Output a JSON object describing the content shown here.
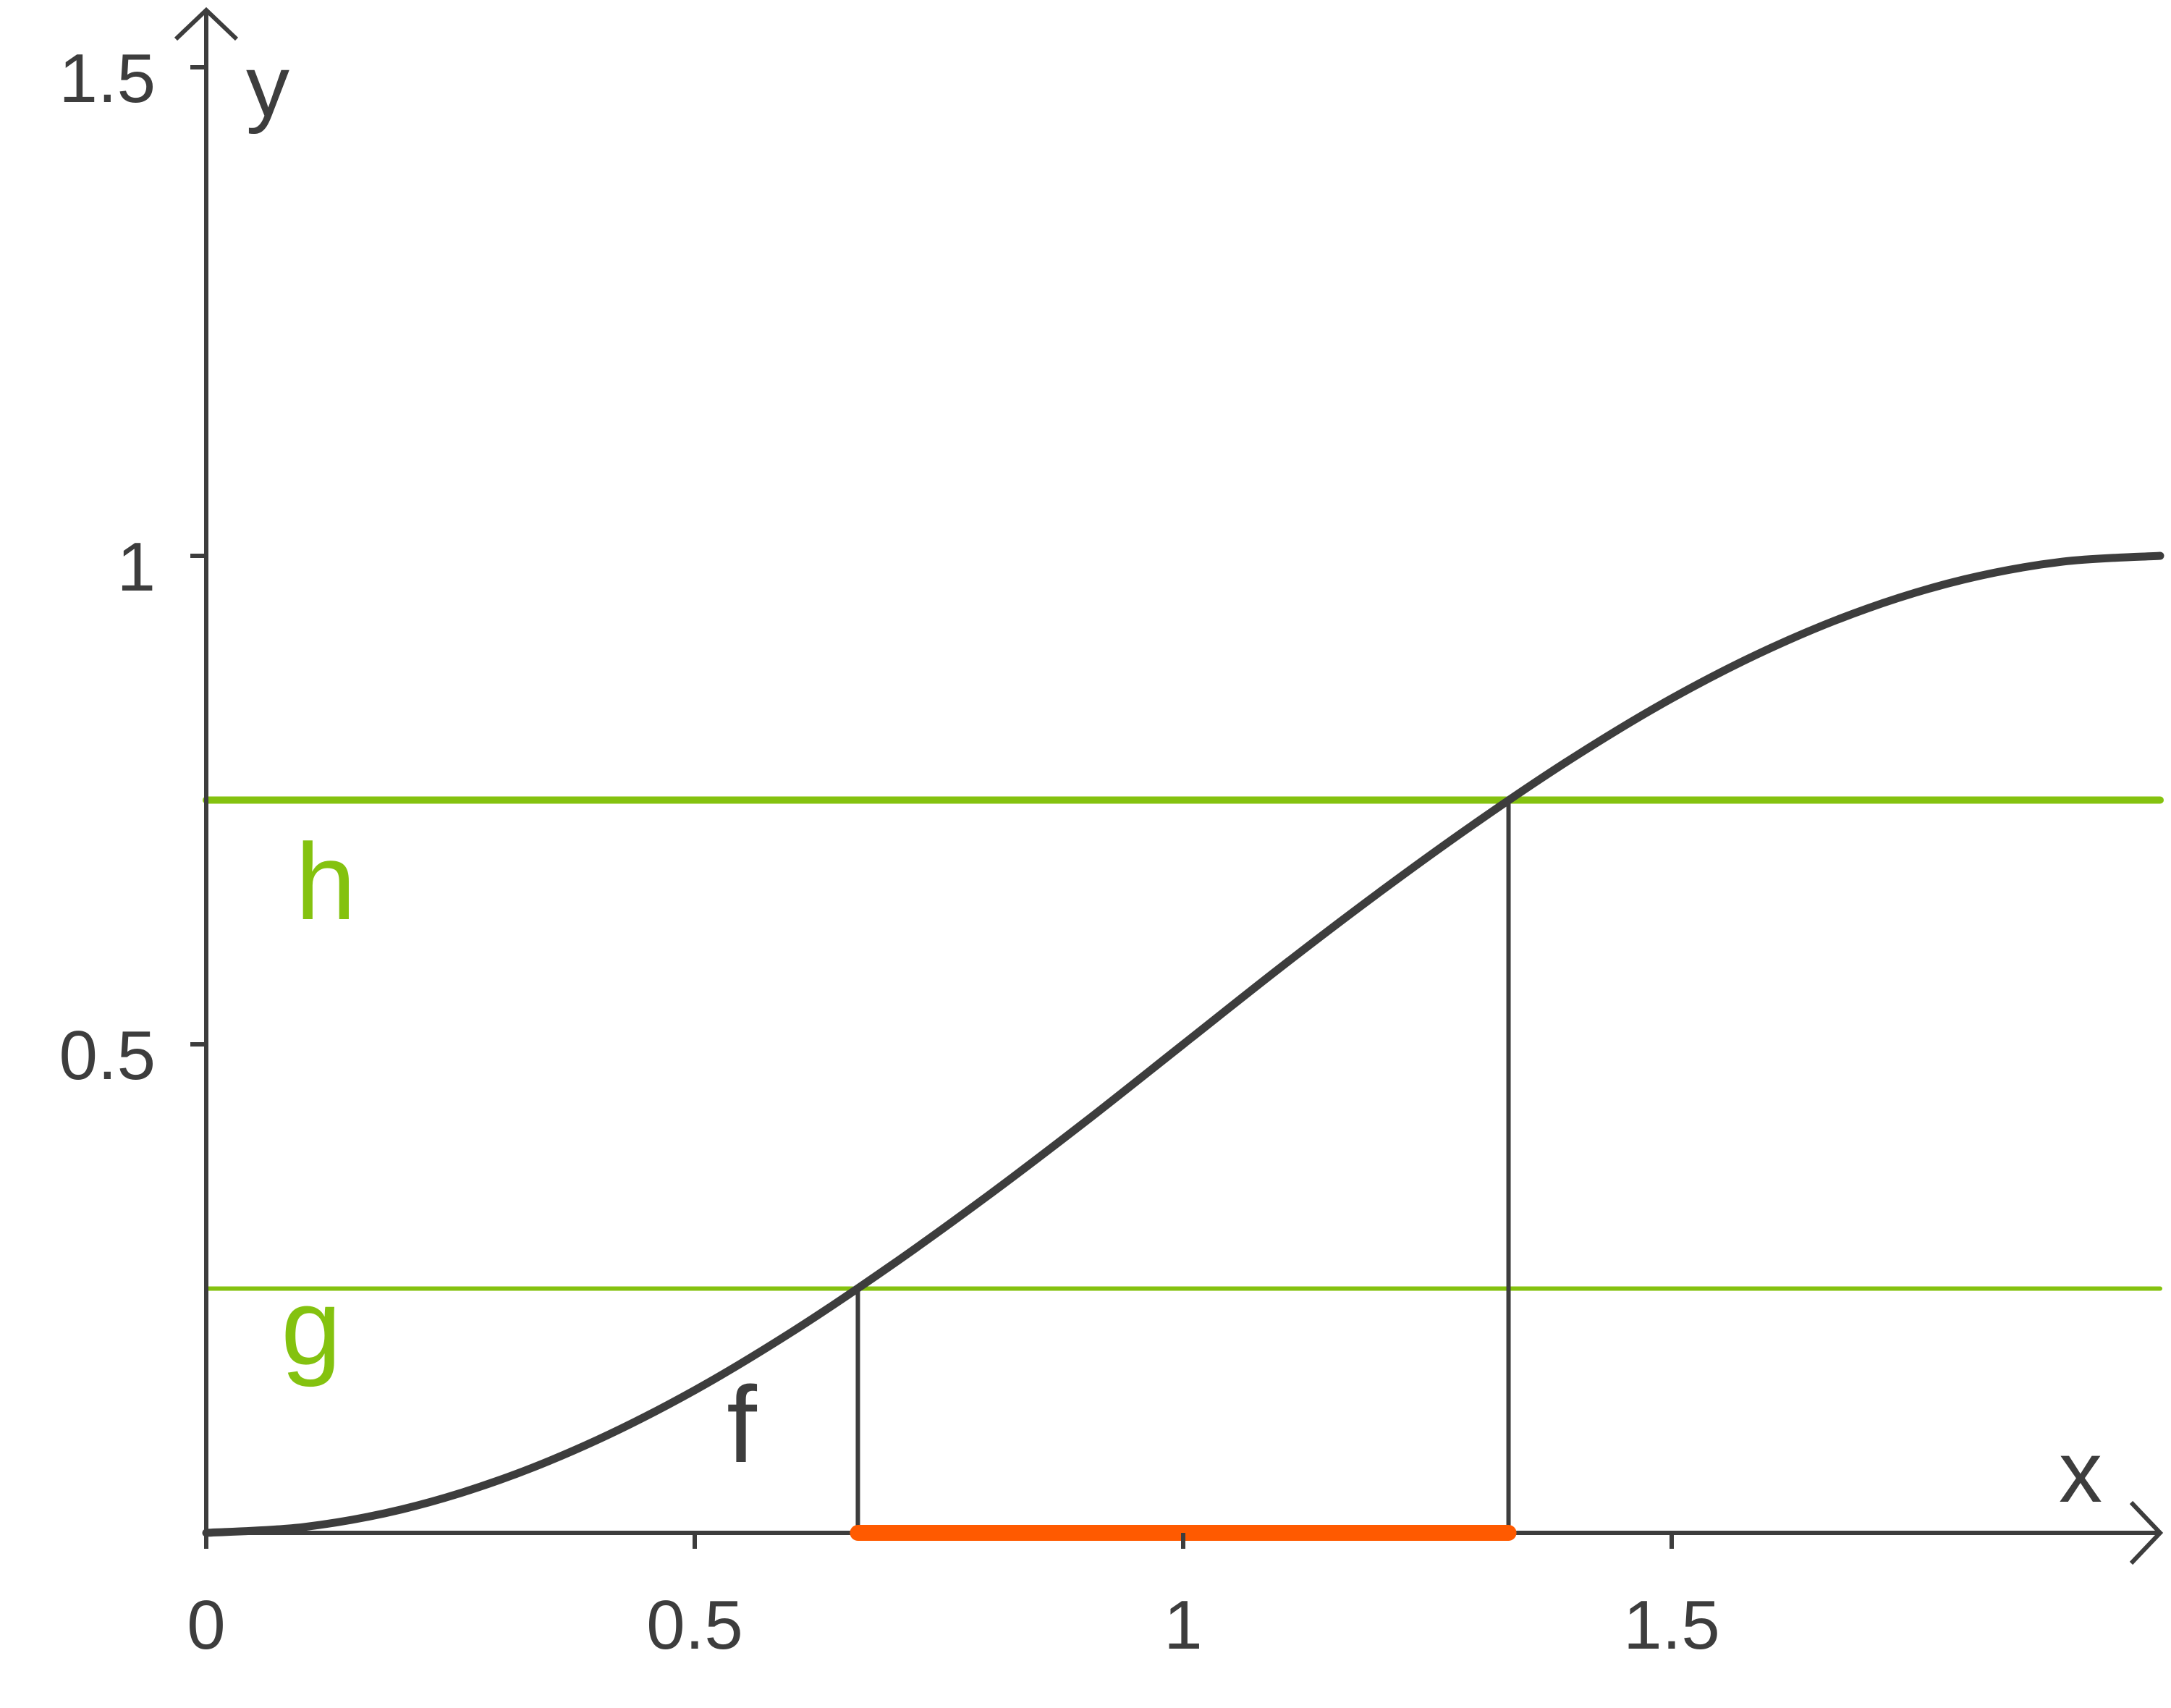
{
  "chart_data": {
    "type": "line",
    "title": "",
    "xlabel": "x",
    "ylabel": "y",
    "xlim": [
      0,
      2
    ],
    "ylim": [
      0,
      1.5
    ],
    "x_ticks": [
      0,
      0.5,
      1,
      1.5
    ],
    "x_tick_labels": [
      "0",
      "0.5",
      "1",
      "1.5"
    ],
    "y_ticks": [
      0.5,
      1,
      1.5
    ],
    "y_tick_labels": [
      "0.5",
      "1",
      "1.5"
    ],
    "grid": false,
    "series": [
      {
        "name": "f",
        "kind": "curve",
        "color": "#3d3d3d",
        "x": [
          0,
          0.1,
          0.2,
          0.3,
          0.4,
          0.5,
          0.6,
          0.7,
          0.8,
          0.9,
          1.0,
          1.1,
          1.2,
          1.3,
          1.4,
          1.5,
          1.6,
          1.7,
          1.8,
          1.9,
          2.0
        ],
        "y": [
          0,
          0.006,
          0.024,
          0.054,
          0.095,
          0.146,
          0.206,
          0.273,
          0.345,
          0.421,
          0.5,
          0.579,
          0.655,
          0.727,
          0.794,
          0.854,
          0.905,
          0.946,
          0.976,
          0.994,
          1.0
        ]
      },
      {
        "name": "h",
        "kind": "horizontal",
        "y": 0.75,
        "color": "#84c20f"
      },
      {
        "name": "g",
        "kind": "horizontal",
        "y": 0.25,
        "color": "#84c20f"
      }
    ],
    "intersections": [
      {
        "x": 0.667,
        "y": 0.25
      },
      {
        "x": 1.333,
        "y": 0.75
      }
    ],
    "highlight_interval": {
      "from": 0.667,
      "to": 1.333,
      "color": "#ff5a00"
    }
  }
}
